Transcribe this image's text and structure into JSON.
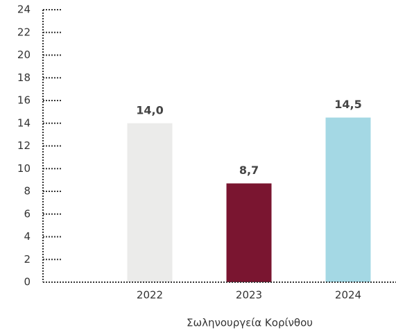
{
  "chart_data": {
    "type": "bar",
    "categories": [
      "2022",
      "2023",
      "2024"
    ],
    "values": [
      14.0,
      8.7,
      14.5
    ],
    "value_labels": [
      "14,0",
      "8,7",
      "14,5"
    ],
    "colors": [
      "#ebebea",
      "#7a1530",
      "#a4d8e4"
    ],
    "x_label": "Σωληνουργεία Κορίνθου",
    "ylim": [
      0,
      24
    ],
    "yticks": [
      0,
      2,
      4,
      6,
      8,
      10,
      12,
      14,
      16,
      18,
      20,
      22,
      24
    ]
  }
}
